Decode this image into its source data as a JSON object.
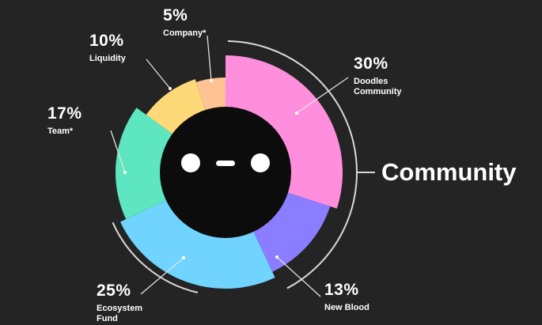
{
  "chart_data": {
    "type": "pie",
    "categories": [
      "Doodles Community",
      "New Blood",
      "Ecosystem Fund",
      "Team*",
      "Liquidity",
      "Company*"
    ],
    "values": [
      30,
      13,
      25,
      17,
      10,
      5
    ],
    "value_labels": [
      "30%",
      "13%",
      "25%",
      "17%",
      "10%",
      "5%"
    ],
    "colors": [
      "#ff8fdc",
      "#8b7dff",
      "#70d4ff",
      "#5de6bf",
      "#ffd978",
      "#ffc293"
    ],
    "annotation": "Community"
  }
}
